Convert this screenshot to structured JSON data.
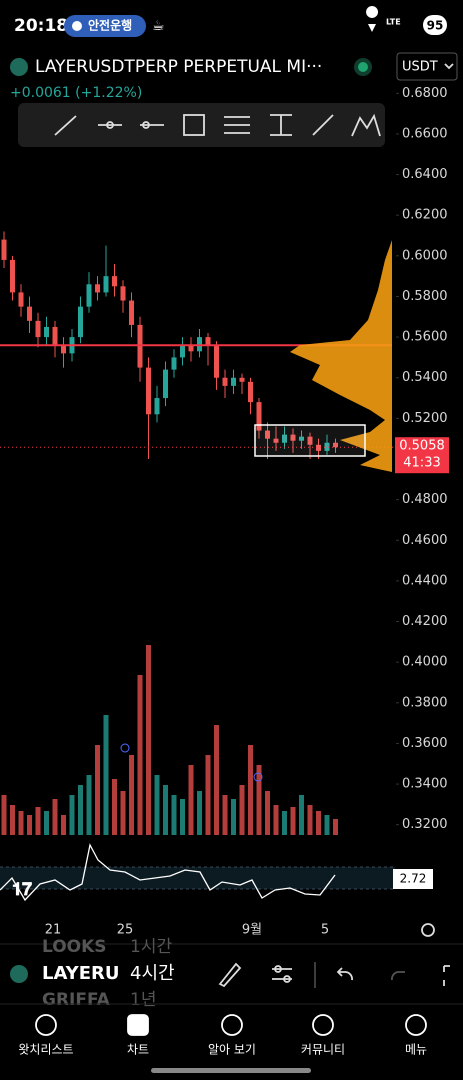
{
  "status_bar": {
    "time": "20:18",
    "badge": "안전운행",
    "network": "LTE",
    "battery": "95"
  },
  "header": {
    "symbol": "LAYERUSDTPERP PERPETUAL MI···",
    "currency": "USDT",
    "change": "+0.0061 (+1.22%)"
  },
  "chart_data": {
    "type": "candlestick",
    "candles": [
      [
        0.608,
        0.612,
        0.594,
        0.598
      ],
      [
        0.598,
        0.6,
        0.578,
        0.582
      ],
      [
        0.582,
        0.586,
        0.57,
        0.575
      ],
      [
        0.575,
        0.58,
        0.562,
        0.568
      ],
      [
        0.568,
        0.572,
        0.555,
        0.56
      ],
      [
        0.56,
        0.57,
        0.556,
        0.565
      ],
      [
        0.565,
        0.568,
        0.55,
        0.556
      ],
      [
        0.556,
        0.56,
        0.545,
        0.552
      ],
      [
        0.552,
        0.564,
        0.548,
        0.56
      ],
      [
        0.56,
        0.58,
        0.557,
        0.575
      ],
      [
        0.575,
        0.592,
        0.572,
        0.586
      ],
      [
        0.586,
        0.59,
        0.578,
        0.582
      ],
      [
        0.582,
        0.605,
        0.58,
        0.59
      ],
      [
        0.59,
        0.596,
        0.58,
        0.585
      ],
      [
        0.585,
        0.588,
        0.572,
        0.578
      ],
      [
        0.578,
        0.582,
        0.56,
        0.566
      ],
      [
        0.566,
        0.57,
        0.538,
        0.545
      ],
      [
        0.545,
        0.55,
        0.5,
        0.522
      ],
      [
        0.522,
        0.536,
        0.518,
        0.53
      ],
      [
        0.53,
        0.548,
        0.526,
        0.544
      ],
      [
        0.544,
        0.554,
        0.54,
        0.55
      ],
      [
        0.55,
        0.56,
        0.546,
        0.556
      ],
      [
        0.556,
        0.56,
        0.548,
        0.553
      ],
      [
        0.553,
        0.564,
        0.55,
        0.56
      ],
      [
        0.56,
        0.562,
        0.546,
        0.556
      ],
      [
        0.556,
        0.558,
        0.534,
        0.54
      ],
      [
        0.54,
        0.544,
        0.53,
        0.536
      ],
      [
        0.536,
        0.544,
        0.532,
        0.54
      ],
      [
        0.54,
        0.542,
        0.532,
        0.538
      ],
      [
        0.538,
        0.54,
        0.522,
        0.528
      ],
      [
        0.528,
        0.53,
        0.51,
        0.514
      ],
      [
        0.514,
        0.518,
        0.5,
        0.51
      ],
      [
        0.51,
        0.516,
        0.504,
        0.508
      ],
      [
        0.508,
        0.516,
        0.505,
        0.512
      ],
      [
        0.512,
        0.515,
        0.503,
        0.509
      ],
      [
        0.509,
        0.514,
        0.505,
        0.511
      ],
      [
        0.511,
        0.513,
        0.5,
        0.507
      ],
      [
        0.507,
        0.51,
        0.5,
        0.504
      ],
      [
        0.504,
        0.512,
        0.502,
        0.508
      ],
      [
        0.508,
        0.51,
        0.503,
        0.5058
      ]
    ],
    "volume": [
      20,
      15,
      12,
      10,
      14,
      12,
      18,
      10,
      20,
      25,
      30,
      45,
      60,
      28,
      22,
      40,
      80,
      95,
      30,
      25,
      20,
      18,
      35,
      22,
      40,
      55,
      20,
      18,
      25,
      45,
      35,
      22,
      15,
      12,
      14,
      20,
      15,
      12,
      10,
      8
    ],
    "ylim": [
      0.31,
      0.69
    ],
    "yticks": [
      {
        "value": 0.68,
        "label": "0.6800"
      },
      {
        "value": 0.66,
        "label": "0.6600"
      },
      {
        "value": 0.64,
        "label": "0.6400"
      },
      {
        "value": 0.62,
        "label": "0.6200"
      },
      {
        "value": 0.6,
        "label": "0.6000"
      },
      {
        "value": 0.58,
        "label": "0.5800"
      },
      {
        "value": 0.56,
        "label": "0.5600"
      },
      {
        "value": 0.54,
        "label": "0.5400"
      },
      {
        "value": 0.52,
        "label": "0.5200"
      },
      {
        "value": 0.5,
        "label": "0.5000"
      },
      {
        "value": 0.48,
        "label": "0.4800"
      },
      {
        "value": 0.46,
        "label": "0.4600"
      },
      {
        "value": 0.44,
        "label": "0.4400"
      },
      {
        "value": 0.42,
        "label": "0.4200"
      },
      {
        "value": 0.4,
        "label": "0.4000"
      },
      {
        "value": 0.38,
        "label": "0.3800"
      },
      {
        "value": 0.36,
        "label": "0.3600"
      },
      {
        "value": 0.34,
        "label": "0.3400"
      },
      {
        "value": 0.32,
        "label": "0.3200"
      }
    ],
    "horizontal_line": 0.556,
    "last_price": 0.5058,
    "countdown": "41:33",
    "oscillator_value": "2.72",
    "x_labels": [
      "21",
      "25",
      "9월",
      "5"
    ],
    "up_color": "#26a69a",
    "down_color": "#ef5350"
  },
  "toolbar": {
    "ghost_top": [
      "LOOKS",
      "1시간"
    ],
    "symbol": "LAYERU",
    "interval": "4시간",
    "ghost_bottom": [
      "GRIFFA",
      "1년"
    ]
  },
  "nav": [
    "왓치리스트",
    "차트",
    "알아 보기",
    "커뮤니티",
    "메뉴"
  ]
}
